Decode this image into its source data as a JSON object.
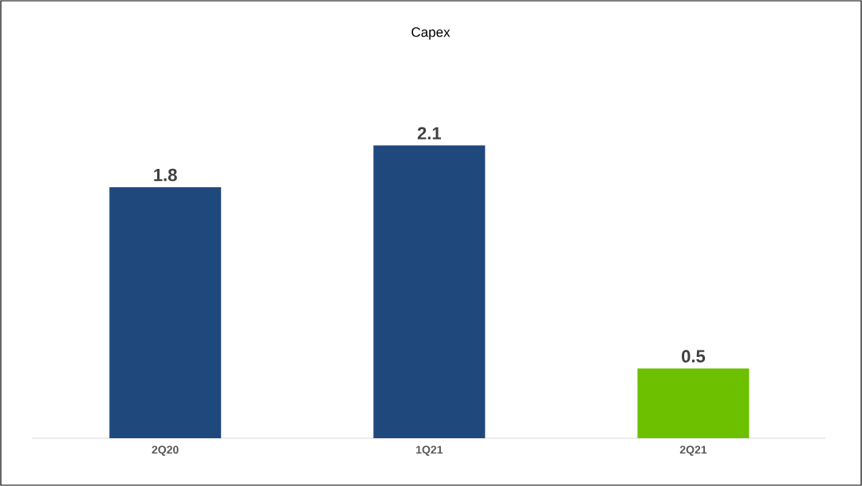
{
  "chart_data": {
    "type": "bar",
    "title": "Capex",
    "categories": [
      "2Q20",
      "1Q21",
      "2Q21"
    ],
    "values": [
      1.8,
      2.1,
      0.5
    ],
    "colors": [
      "#1f497d",
      "#1f497d",
      "#6cc000"
    ],
    "data_labels": true
  }
}
